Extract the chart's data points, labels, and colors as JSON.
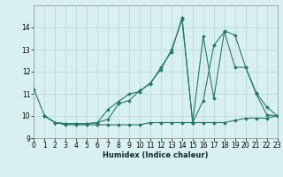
{
  "xlabel": "Humidex (Indice chaleur)",
  "xlim": [
    0,
    23
  ],
  "ylim": [
    9,
    15
  ],
  "xticks": [
    0,
    1,
    2,
    3,
    4,
    5,
    6,
    7,
    8,
    9,
    10,
    11,
    12,
    13,
    14,
    15,
    16,
    17,
    18,
    19,
    20,
    21,
    22,
    23
  ],
  "yticks": [
    9,
    10,
    11,
    12,
    13,
    14
  ],
  "bg_color": "#d8f0f0",
  "line_color": "#267868",
  "grid_color": "#b8d8d8",
  "lines": [
    {
      "x": [
        0,
        1,
        2,
        3,
        4,
        5,
        6,
        7,
        8,
        9,
        10,
        11,
        12,
        13,
        14,
        15,
        16,
        17,
        18,
        19,
        20,
        21,
        22,
        23
      ],
      "y": [
        11.2,
        10.0,
        9.7,
        9.6,
        9.6,
        9.6,
        9.6,
        9.6,
        9.6,
        9.6,
        9.6,
        9.7,
        9.7,
        9.7,
        9.7,
        9.7,
        9.7,
        9.7,
        9.7,
        9.8,
        9.9,
        9.9,
        9.9,
        10.0
      ]
    },
    {
      "x": [
        1,
        2,
        3,
        4,
        5,
        6,
        7,
        8,
        9,
        10,
        11,
        12,
        13,
        14,
        15,
        16,
        17,
        18,
        19,
        20,
        21,
        22,
        23
      ],
      "y": [
        10.0,
        9.7,
        9.65,
        9.65,
        9.65,
        9.7,
        10.3,
        10.65,
        11.0,
        11.1,
        11.5,
        12.1,
        13.0,
        14.35,
        9.7,
        13.6,
        10.8,
        13.85,
        13.65,
        12.2,
        11.05,
        10.4,
        10.0
      ]
    },
    {
      "x": [
        1,
        2,
        3,
        4,
        5,
        6,
        7,
        8,
        9,
        10,
        11,
        12,
        13,
        14,
        15,
        16,
        17,
        18,
        19,
        20,
        21,
        22,
        23
      ],
      "y": [
        10.0,
        9.7,
        9.65,
        9.65,
        9.65,
        9.7,
        9.85,
        10.55,
        10.7,
        11.15,
        11.45,
        12.2,
        12.9,
        14.45,
        9.7,
        10.7,
        13.2,
        13.8,
        12.2,
        12.2,
        11.0,
        10.05,
        10.0
      ]
    }
  ]
}
